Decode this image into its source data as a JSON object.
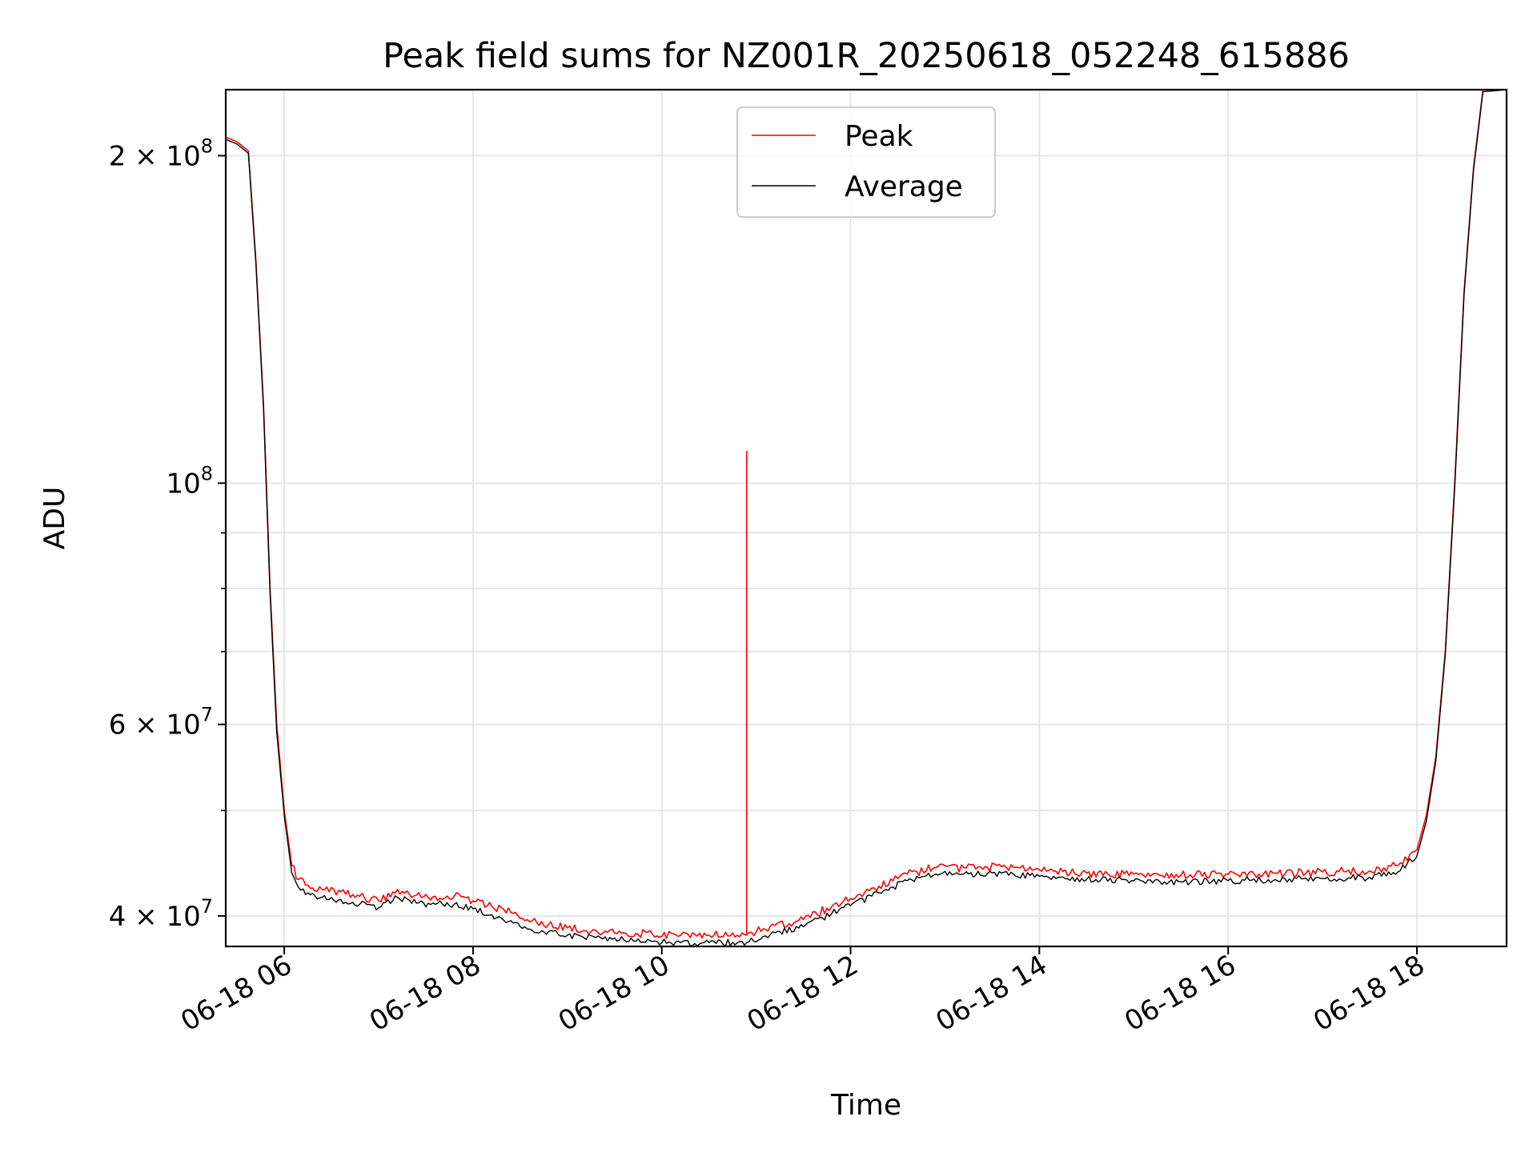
{
  "chart_data": {
    "type": "line",
    "title": "Peak field sums for NZ001R_20250618_052248_615886",
    "xlabel": "Time",
    "ylabel": "ADU",
    "x_unit": "hour of 2025-06-18",
    "xlim": [
      5.38,
      18.95
    ],
    "ylim": [
      37500000,
      230000000
    ],
    "yscale": "log",
    "grid": true,
    "legend": {
      "placement": "upper center"
    },
    "x_ticks": [
      {
        "value": 6,
        "label": "06-18 06"
      },
      {
        "value": 8,
        "label": "06-18 08"
      },
      {
        "value": 10,
        "label": "06-18 10"
      },
      {
        "value": 12,
        "label": "06-18 12"
      },
      {
        "value": 14,
        "label": "06-18 14"
      },
      {
        "value": 16,
        "label": "06-18 16"
      },
      {
        "value": 18,
        "label": "06-18 18"
      }
    ],
    "y_ticks": [
      {
        "value": 40000000,
        "label": "4 × 10",
        "exp": "7"
      },
      {
        "value": 60000000,
        "label": "6 × 10",
        "exp": "7"
      },
      {
        "value": 100000000,
        "label": "10",
        "exp": "8"
      },
      {
        "value": 200000000,
        "label": "2 × 10",
        "exp": "8"
      }
    ],
    "y_minor_ticks": [
      50000000,
      70000000,
      80000000,
      90000000
    ],
    "series": [
      {
        "name": "Peak",
        "color": "#ff0000",
        "x": [
          5.38,
          5.5,
          5.62,
          5.7,
          5.78,
          5.85,
          5.92,
          6.0,
          6.08,
          6.15,
          6.25,
          6.4,
          6.6,
          6.8,
          7.0,
          7.2,
          7.4,
          7.6,
          7.8,
          8.0,
          8.2,
          8.4,
          8.5,
          8.6,
          8.8,
          9.0,
          9.3,
          9.6,
          9.9,
          10.2,
          10.5,
          10.8,
          10.9,
          10.9,
          10.9,
          11.2,
          11.5,
          11.8,
          12.0,
          12.3,
          12.6,
          12.9,
          13.2,
          13.6,
          14.0,
          14.5,
          15.0,
          15.5,
          16.0,
          16.5,
          17.0,
          17.5,
          17.8,
          18.0,
          18.1,
          18.2,
          18.3,
          18.4,
          18.5,
          18.6,
          18.7,
          18.95
        ],
        "y": [
          208000000,
          206000000,
          202000000,
          160000000,
          118000000,
          80000000,
          60000000,
          50000000,
          44500000,
          43200000,
          42700000,
          42300000,
          42100000,
          41700000,
          41300000,
          42300000,
          41800000,
          41700000,
          41700000,
          41300000,
          40800000,
          40300000,
          39800000,
          39500000,
          39300000,
          39000000,
          38800000,
          38600000,
          38500000,
          38400000,
          38400000,
          38400000,
          38400000,
          107000000,
          38500000,
          39200000,
          39700000,
          40800000,
          41500000,
          42600000,
          43700000,
          44300000,
          44300000,
          44400000,
          44100000,
          43800000,
          43700000,
          43600000,
          43700000,
          43800000,
          43900000,
          44000000,
          44500000,
          46000000,
          49500000,
          56000000,
          70000000,
          100000000,
          150000000,
          195000000,
          230000000,
          230000000
        ]
      },
      {
        "name": "Average",
        "color": "#000000",
        "x": [
          5.38,
          5.5,
          5.62,
          5.7,
          5.78,
          5.85,
          5.92,
          6.0,
          6.08,
          6.15,
          6.25,
          6.4,
          6.6,
          6.8,
          7.0,
          7.2,
          7.4,
          7.6,
          7.8,
          8.0,
          8.2,
          8.4,
          8.5,
          8.6,
          8.8,
          9.0,
          9.3,
          9.6,
          9.9,
          10.2,
          10.5,
          10.8,
          10.9,
          11.2,
          11.5,
          11.8,
          12.0,
          12.3,
          12.6,
          12.9,
          13.2,
          13.6,
          14.0,
          14.5,
          15.0,
          15.5,
          16.0,
          16.5,
          17.0,
          17.5,
          17.8,
          18.0,
          18.1,
          18.2,
          18.3,
          18.4,
          18.5,
          18.6,
          18.7,
          18.95
        ],
        "y": [
          207000000,
          205000000,
          201000000,
          159000000,
          117000000,
          79000000,
          59000000,
          49500000,
          43800000,
          42500000,
          42000000,
          41600000,
          41400000,
          41000000,
          40700000,
          41600000,
          41100000,
          41000000,
          41000000,
          40600000,
          40100000,
          39600000,
          39100000,
          38900000,
          38700000,
          38400000,
          38200000,
          38000000,
          37900000,
          37800000,
          37800000,
          37800000,
          37800000,
          38600000,
          39100000,
          40200000,
          40900000,
          42000000,
          43100000,
          43700000,
          43700000,
          43800000,
          43500000,
          43200000,
          43100000,
          43000000,
          43100000,
          43200000,
          43300000,
          43400000,
          43900000,
          45400000,
          48900000,
          55500000,
          69500000,
          99000000,
          149000000,
          194000000,
          229000000,
          230000000
        ]
      }
    ]
  }
}
